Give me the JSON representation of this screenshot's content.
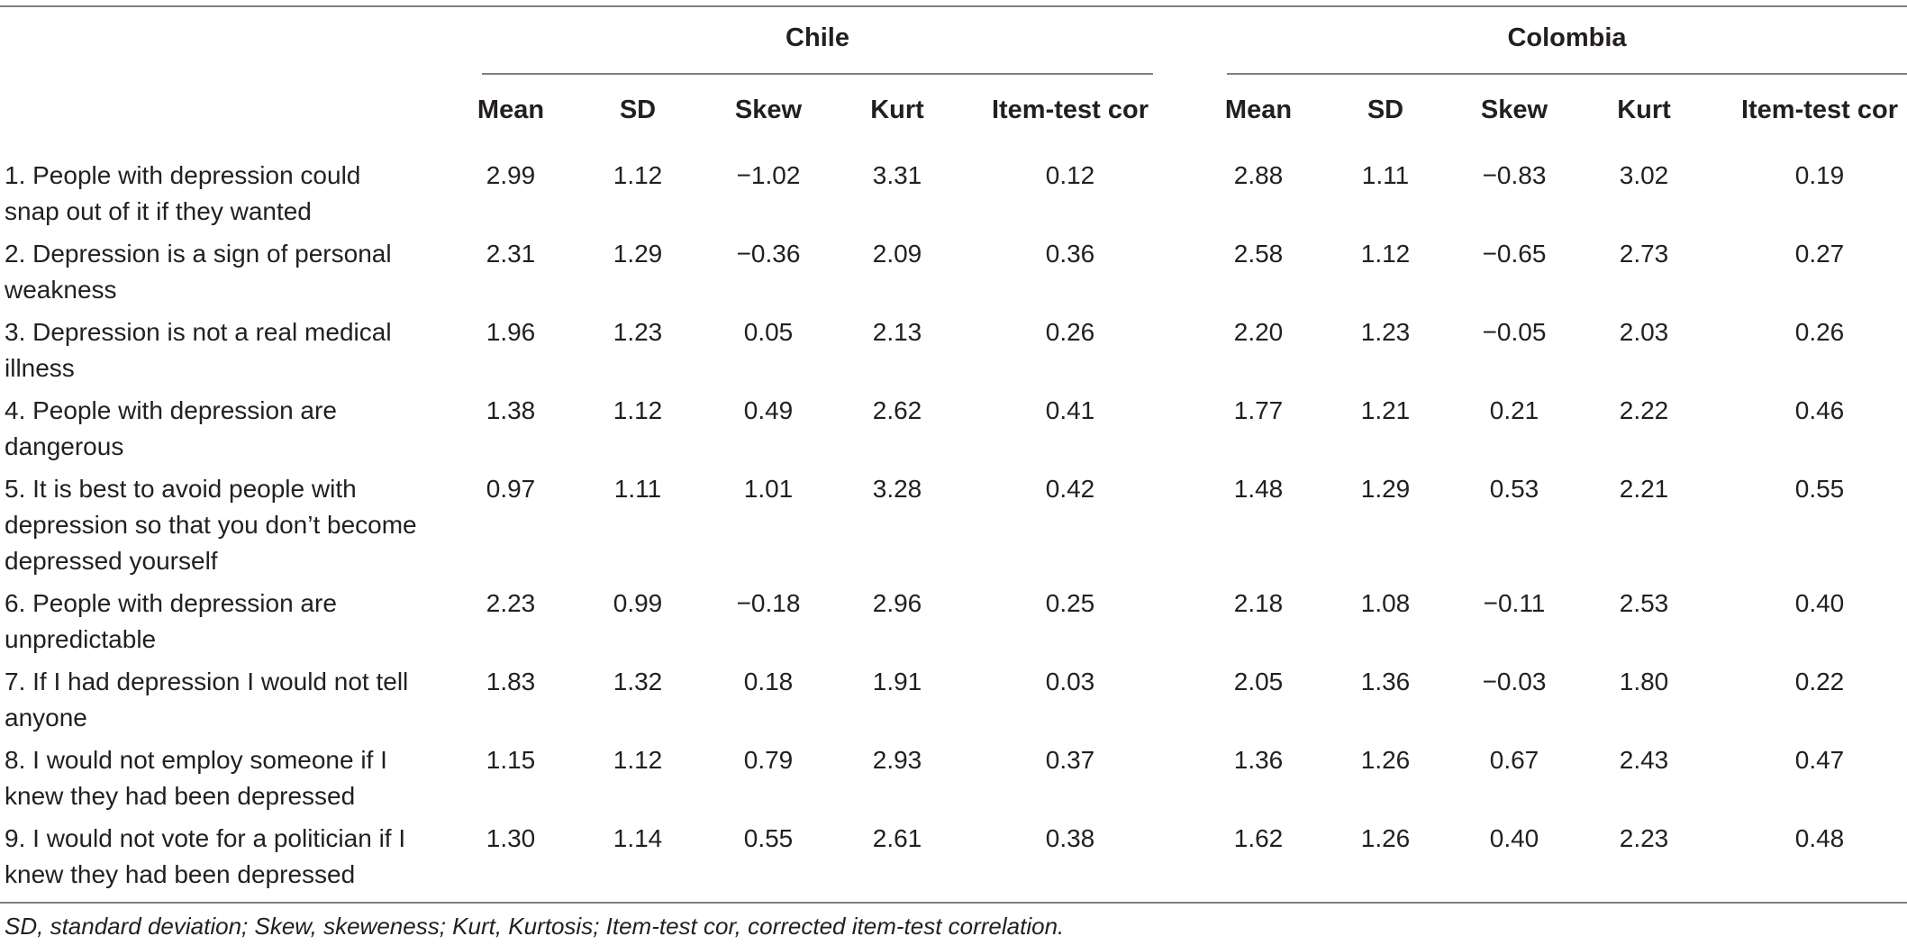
{
  "groups": [
    {
      "name": "Chile"
    },
    {
      "name": "Colombia"
    }
  ],
  "columns": [
    "Mean",
    "SD",
    "Skew",
    "Kurt",
    "Item-test cor"
  ],
  "rows": [
    {
      "label": "1. People with depression could snap out of it if they wanted",
      "chile": [
        "2.99",
        "1.12",
        "−1.02",
        "3.31",
        "0.12"
      ],
      "colombia": [
        "2.88",
        "1.11",
        "−0.83",
        "3.02",
        "0.19"
      ]
    },
    {
      "label": "2. Depression is a sign of personal weakness",
      "chile": [
        "2.31",
        "1.29",
        "−0.36",
        "2.09",
        "0.36"
      ],
      "colombia": [
        "2.58",
        "1.12",
        "−0.65",
        "2.73",
        "0.27"
      ]
    },
    {
      "label": "3. Depression is not a real medical illness",
      "chile": [
        "1.96",
        "1.23",
        "0.05",
        "2.13",
        "0.26"
      ],
      "colombia": [
        "2.20",
        "1.23",
        "−0.05",
        "2.03",
        "0.26"
      ]
    },
    {
      "label": "4. People with depression are dangerous",
      "chile": [
        "1.38",
        "1.12",
        "0.49",
        "2.62",
        "0.41"
      ],
      "colombia": [
        "1.77",
        "1.21",
        "0.21",
        "2.22",
        "0.46"
      ]
    },
    {
      "label": "5. It is best to avoid people with depression so that you don’t become depressed yourself",
      "chile": [
        "0.97",
        "1.11",
        "1.01",
        "3.28",
        "0.42"
      ],
      "colombia": [
        "1.48",
        "1.29",
        "0.53",
        "2.21",
        "0.55"
      ]
    },
    {
      "label": "6. People with depression are unpredictable",
      "chile": [
        "2.23",
        "0.99",
        "−0.18",
        "2.96",
        "0.25"
      ],
      "colombia": [
        "2.18",
        "1.08",
        "−0.11",
        "2.53",
        "0.40"
      ]
    },
    {
      "label": "7. If I had depression I would not tell anyone",
      "chile": [
        "1.83",
        "1.32",
        "0.18",
        "1.91",
        "0.03"
      ],
      "colombia": [
        "2.05",
        "1.36",
        "−0.03",
        "1.80",
        "0.22"
      ]
    },
    {
      "label": "8. I would not employ someone if I knew they had been depressed",
      "chile": [
        "1.15",
        "1.12",
        "0.79",
        "2.93",
        "0.37"
      ],
      "colombia": [
        "1.36",
        "1.26",
        "0.67",
        "2.43",
        "0.47"
      ]
    },
    {
      "label": "9. I would not vote for a politician if I knew they had been depressed",
      "chile": [
        "1.30",
        "1.14",
        "0.55",
        "2.61",
        "0.38"
      ],
      "colombia": [
        "1.62",
        "1.26",
        "0.40",
        "2.23",
        "0.48"
      ]
    }
  ],
  "footnote": "SD, standard deviation; Skew, skeweness; Kurt, Kurtosis; Item-test cor, corrected item-test correlation."
}
